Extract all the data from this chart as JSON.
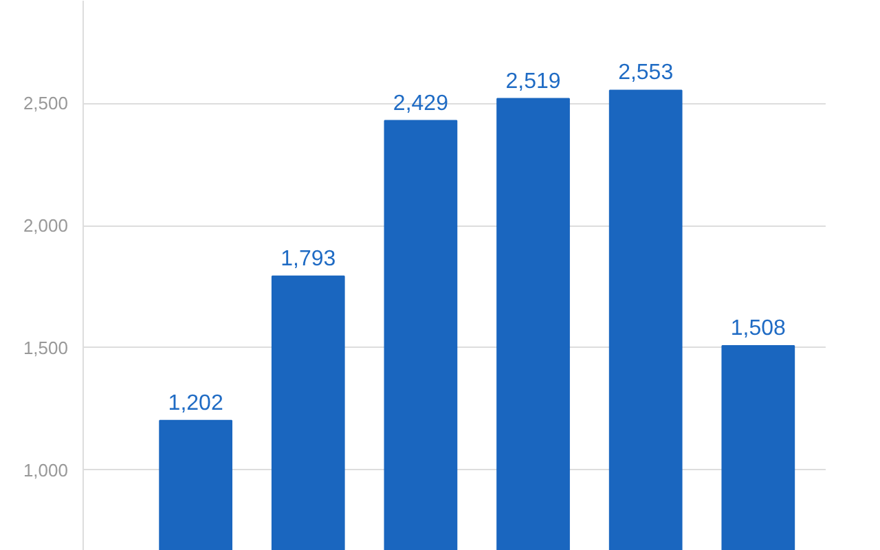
{
  "chart_data": {
    "type": "bar",
    "categories": [
      null,
      null,
      null,
      null,
      null,
      null
    ],
    "values": [
      1202,
      1793,
      2429,
      2519,
      2553,
      1508
    ],
    "color": "#1a66bf",
    "ylim": [
      670,
      2920
    ],
    "yticks": [
      {
        "value": 1000,
        "label": "1,000"
      },
      {
        "value": 1500,
        "label": "1,500"
      },
      {
        "value": 2000,
        "label": "2,000"
      },
      {
        "value": 2500,
        "label": "2,500"
      }
    ],
    "grid": "y",
    "data_labels": true,
    "value_labels": [
      "1,202",
      "1,793",
      "2,429",
      "2,519",
      "2,553",
      "1,508"
    ]
  }
}
